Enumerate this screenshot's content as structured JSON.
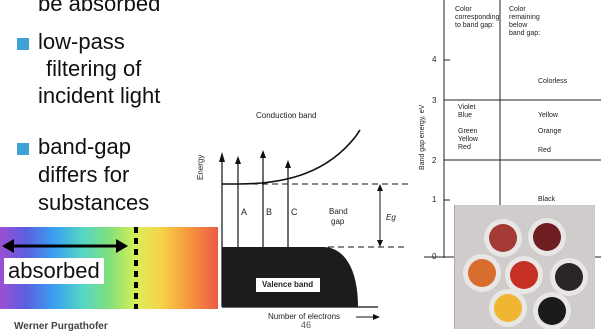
{
  "bullets": {
    "top_fragment": "be absorbed",
    "item1_line1": "low-pass",
    "item1_line2": "filtering of",
    "item1_line3": "incident light",
    "item2_line1": "band-gap",
    "item2_line2": "differs for",
    "item2_line3": "substances"
  },
  "spectrum": {
    "label": "absorbed"
  },
  "diagram": {
    "conduction": "Conduction band",
    "valence": "Valence band",
    "energy_axis": "Energy",
    "electrons_axis": "Number of electrons",
    "arrows": [
      "A",
      "B",
      "C"
    ],
    "band_gap_line1": "Band",
    "band_gap_line2": "gap",
    "eg": "Eg"
  },
  "table": {
    "col1": [
      "Color",
      "corresponding",
      "to band gap:"
    ],
    "col2": [
      "Color",
      "remaining",
      "below",
      "band gap:"
    ],
    "axis": "Band gap energy, eV",
    "ticks": [
      "4",
      "3",
      "2",
      "1",
      "0"
    ],
    "left_colors": [
      "Violet",
      "Blue",
      "Green",
      "Yellow",
      "Red"
    ],
    "right_colors": [
      "Colorless",
      "Yellow",
      "Orange",
      "Red",
      "Black"
    ]
  },
  "footer": {
    "author": "Werner Purgathofer",
    "page": "46"
  }
}
